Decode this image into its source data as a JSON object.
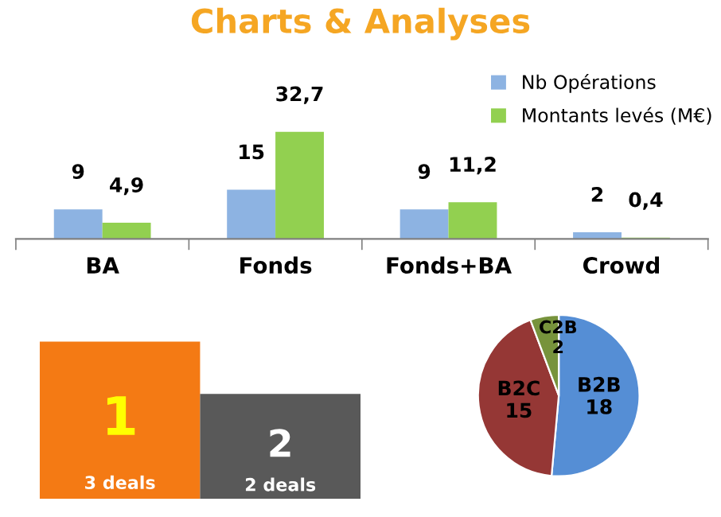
{
  "chart_data": [
    {
      "type": "bar",
      "title": "Charts & Analyses",
      "categories": [
        "BA",
        "Fonds",
        "Fonds+BA",
        "Crowd"
      ],
      "legend": "top right",
      "tick_labels": "x",
      "series": [
        {
          "name": "Nb Opérations",
          "color": "#8db3e2",
          "values": [
            9,
            15,
            9,
            2
          ],
          "value_labels": [
            "9",
            "15",
            "9",
            "2"
          ]
        },
        {
          "name": "Montants levés (M€)",
          "color": "#92d050",
          "values": [
            4.9,
            32.7,
            11.2,
            0.4
          ],
          "value_labels": [
            "4,9",
            "32,7",
            "11,2",
            "0,4"
          ]
        }
      ]
    },
    {
      "type": "bar",
      "categories": [
        null,
        null
      ],
      "values": [
        3,
        2
      ],
      "colors": [
        "#f47a14",
        "#595959"
      ],
      "value_labels": [
        "3 deals",
        "2 deals"
      ],
      "annotations": [
        "1",
        "2"
      ],
      "relative": false,
      "tick_labels": false
    },
    {
      "type": "pie",
      "categories": [
        "B2B",
        "B2C",
        "C2B"
      ],
      "values": [
        18,
        15,
        2
      ],
      "colors": [
        "#558ed5",
        "#953735",
        "#77933c"
      ],
      "data_labels": true
    }
  ]
}
